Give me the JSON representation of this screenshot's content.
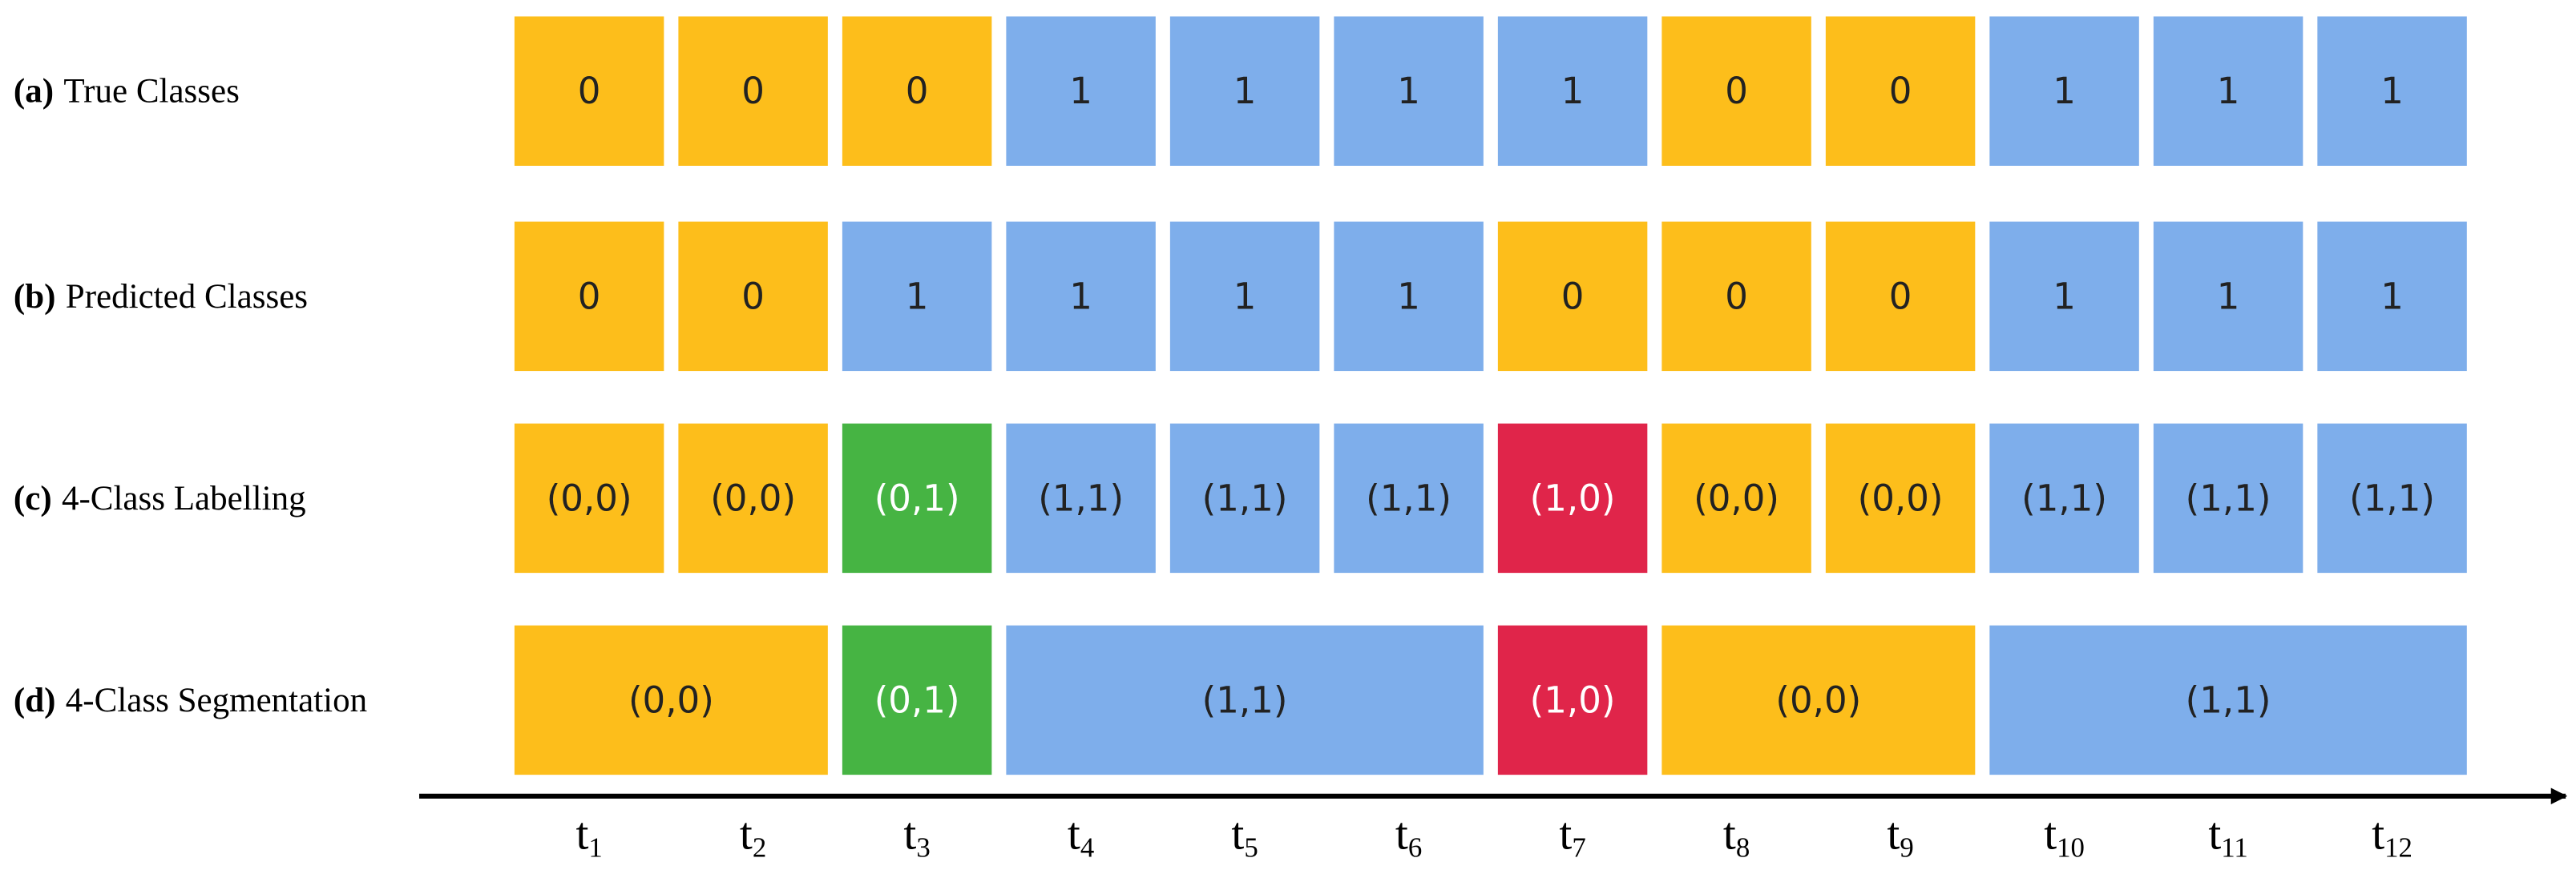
{
  "rows": [
    {
      "prefix": "(a)",
      "label": "True Classes",
      "cells": [
        {
          "text": "0",
          "color": "#fdbe1b"
        },
        {
          "text": "0",
          "color": "#fdbe1b"
        },
        {
          "text": "0",
          "color": "#fdbe1b"
        },
        {
          "text": "1",
          "color": "#7eaeeb"
        },
        {
          "text": "1",
          "color": "#7eaeeb"
        },
        {
          "text": "1",
          "color": "#7eaeeb"
        },
        {
          "text": "1",
          "color": "#7eaeeb"
        },
        {
          "text": "0",
          "color": "#fdbe1b"
        },
        {
          "text": "0",
          "color": "#fdbe1b"
        },
        {
          "text": "1",
          "color": "#7eaeeb"
        },
        {
          "text": "1",
          "color": "#7eaeeb"
        },
        {
          "text": "1",
          "color": "#7eaeeb"
        }
      ]
    },
    {
      "prefix": "(b)",
      "label": "Predicted Classes",
      "cells": [
        {
          "text": "0",
          "color": "#fdbe1b"
        },
        {
          "text": "0",
          "color": "#fdbe1b"
        },
        {
          "text": "1",
          "color": "#7eaeeb"
        },
        {
          "text": "1",
          "color": "#7eaeeb"
        },
        {
          "text": "1",
          "color": "#7eaeeb"
        },
        {
          "text": "1",
          "color": "#7eaeeb"
        },
        {
          "text": "0",
          "color": "#fdbe1b"
        },
        {
          "text": "0",
          "color": "#fdbe1b"
        },
        {
          "text": "0",
          "color": "#fdbe1b"
        },
        {
          "text": "1",
          "color": "#7eaeeb"
        },
        {
          "text": "1",
          "color": "#7eaeeb"
        },
        {
          "text": "1",
          "color": "#7eaeeb"
        }
      ]
    },
    {
      "prefix": "(c)",
      "label": "4-Class Labelling",
      "cells": [
        {
          "text": "(0,0)",
          "color": "#fdbe1b"
        },
        {
          "text": "(0,0)",
          "color": "#fdbe1b"
        },
        {
          "text": "(0,1)",
          "color": "#46b443"
        },
        {
          "text": "(1,1)",
          "color": "#7eaeeb"
        },
        {
          "text": "(1,1)",
          "color": "#7eaeeb"
        },
        {
          "text": "(1,1)",
          "color": "#7eaeeb"
        },
        {
          "text": "(1,0)",
          "color": "#e0254a"
        },
        {
          "text": "(0,0)",
          "color": "#fdbe1b"
        },
        {
          "text": "(0,0)",
          "color": "#fdbe1b"
        },
        {
          "text": "(1,1)",
          "color": "#7eaeeb"
        },
        {
          "text": "(1,1)",
          "color": "#7eaeeb"
        },
        {
          "text": "(1,1)",
          "color": "#7eaeeb"
        }
      ]
    }
  ],
  "segmentation": {
    "prefix": "(d)",
    "label": "4-Class Segmentation",
    "segments": [
      {
        "text": "(0,0)",
        "color": "#fdbe1b"
      },
      {
        "text": "(0,1)",
        "color": "#46b443"
      },
      {
        "text": "(1,1)",
        "color": "#7eaeeb"
      },
      {
        "text": "(1,0)",
        "color": "#e0254a"
      },
      {
        "text": "(0,0)",
        "color": "#fdbe1b"
      },
      {
        "text": "(1,1)",
        "color": "#7eaeeb"
      }
    ]
  },
  "time_labels": [
    {
      "base": "t",
      "sub": "1"
    },
    {
      "base": "t",
      "sub": "2"
    },
    {
      "base": "t",
      "sub": "3"
    },
    {
      "base": "t",
      "sub": "4"
    },
    {
      "base": "t",
      "sub": "5"
    },
    {
      "base": "t",
      "sub": "6"
    },
    {
      "base": "t",
      "sub": "7"
    },
    {
      "base": "t",
      "sub": "8"
    },
    {
      "base": "t",
      "sub": "9"
    },
    {
      "base": "t",
      "sub": "10"
    },
    {
      "base": "t",
      "sub": "11"
    },
    {
      "base": "t",
      "sub": "12"
    }
  ]
}
